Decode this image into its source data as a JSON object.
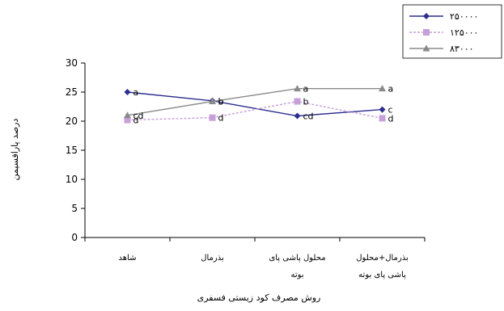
{
  "chart_data": {
    "type": "line",
    "categories": [
      [
        "شاهد"
      ],
      [
        "بذرمال"
      ],
      [
        "محلول پاشی پای",
        "بوته"
      ],
      [
        "بذرمال+محلول",
        "پاشی پای بوته"
      ]
    ],
    "series": [
      {
        "name": "۲۵۰۰۰۰",
        "color": "#2b2f8f",
        "dash": false,
        "marker": "diamond",
        "values": [
          25.0,
          23.5,
          20.9,
          22.0
        ],
        "labels": [
          "a",
          "b",
          "cd",
          "c"
        ]
      },
      {
        "name": "۱۲۵۰۰۰",
        "color": "#c79fd9",
        "dash": true,
        "marker": "square",
        "values": [
          20.2,
          20.6,
          23.4,
          20.5
        ],
        "labels": [
          "d",
          "d",
          "b",
          "d"
        ]
      },
      {
        "name": "۸۳۰۰۰",
        "color": "#8a8a8a",
        "dash": false,
        "marker": "triangle",
        "values": [
          21.0,
          23.4,
          25.6,
          25.6
        ],
        "labels": [
          "cd",
          "b",
          "a",
          "a"
        ]
      }
    ],
    "ylim": [
      0,
      30
    ],
    "yticks": [
      0,
      5,
      10,
      15,
      20,
      25,
      30
    ],
    "xlabel": "روش مصرف کود زیستی فسفری",
    "ylabel": "درصد پارافسیمن",
    "legend": "top-right",
    "grid": false
  }
}
